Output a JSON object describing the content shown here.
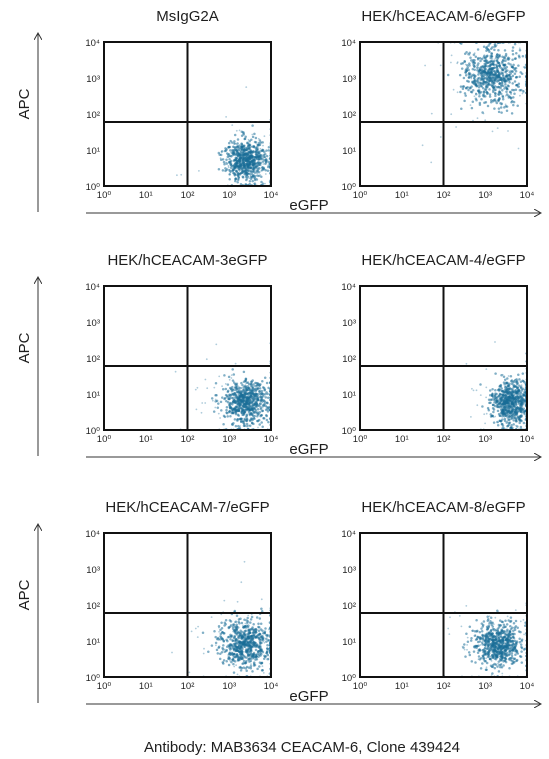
{
  "chart_data": {
    "type": "scatter",
    "caption": "Antibody: MAB3634 CEACAM-6, Clone 439424",
    "xlabel": "eGFP",
    "ylabel": "APC",
    "xscale": "log",
    "yscale": "log",
    "xlim": [
      1,
      10000
    ],
    "ylim": [
      1,
      10000
    ],
    "x_tick_labels": [
      "10⁰",
      "10¹",
      "10²",
      "10³",
      "10⁴"
    ],
    "y_tick_labels": [
      "10⁰",
      "10¹",
      "10²",
      "10³",
      "10⁴"
    ],
    "quadrant_gate": {
      "x": 100,
      "y": 60
    },
    "point_color": "#1a6e98",
    "panels": [
      {
        "title": "MsIgG2A",
        "cluster_center": [
          2500,
          5
        ],
        "spread_log": [
          0.25,
          0.3
        ]
      },
      {
        "title": "HEK/hCEACAM-6/eGFP",
        "cluster_center": [
          1500,
          1200
        ],
        "spread_log": [
          0.35,
          0.4
        ]
      },
      {
        "title": "HEK/hCEACAM-3eGFP",
        "cluster_center": [
          2500,
          6
        ],
        "spread_log": [
          0.28,
          0.3
        ]
      },
      {
        "title": "HEK/hCEACAM-4/eGFP",
        "cluster_center": [
          4000,
          6
        ],
        "spread_log": [
          0.22,
          0.3
        ]
      },
      {
        "title": "HEK/hCEACAM-7/eGFP",
        "cluster_center": [
          2500,
          8
        ],
        "spread_log": [
          0.3,
          0.33
        ]
      },
      {
        "title": "HEK/hCEACAM-8/eGFP",
        "cluster_center": [
          2000,
          8
        ],
        "spread_log": [
          0.28,
          0.3
        ]
      }
    ]
  }
}
